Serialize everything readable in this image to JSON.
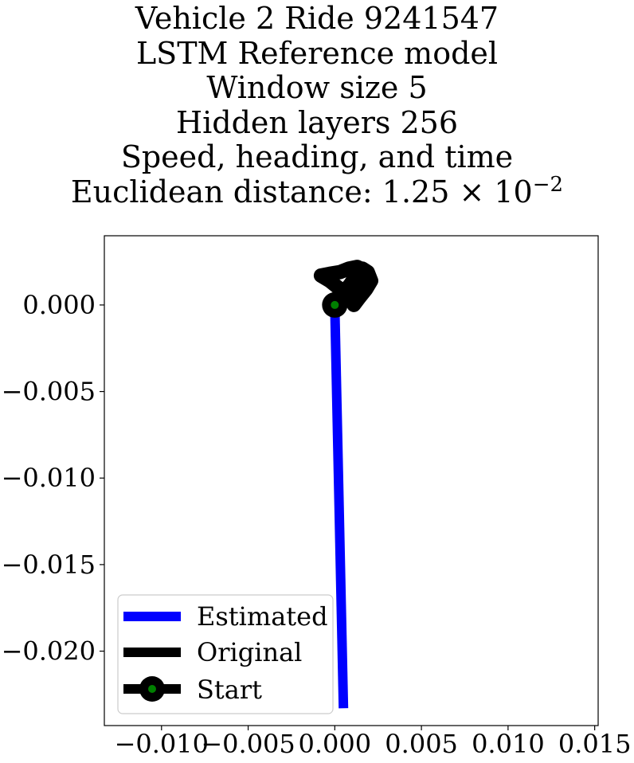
{
  "title_lines": [
    "Vehicle 2 Ride 9241547",
    "LSTM Reference model",
    "Window size 5",
    "Hidden layers 256",
    "Speed, heading, and time"
  ],
  "title_distance": {
    "prefix": "Euclidean distance: 1.25 × 10",
    "exponent": "−2"
  },
  "chart_data": {
    "type": "line",
    "xlabel": "",
    "ylabel": "",
    "xlim": [
      -0.0133,
      0.0152
    ],
    "ylim": [
      -0.0243,
      0.004
    ],
    "x_ticks": [
      {
        "value": -0.01,
        "label": "−0.010"
      },
      {
        "value": -0.005,
        "label": "−0.005"
      },
      {
        "value": 0.0,
        "label": "0.000"
      },
      {
        "value": 0.005,
        "label": "0.005"
      },
      {
        "value": 0.01,
        "label": "0.010"
      },
      {
        "value": 0.015,
        "label": "0.015"
      }
    ],
    "y_ticks": [
      {
        "value": 0.0,
        "label": "0.000"
      },
      {
        "value": -0.005,
        "label": "−0.005"
      },
      {
        "value": -0.01,
        "label": "−0.010"
      },
      {
        "value": -0.015,
        "label": "−0.015"
      },
      {
        "value": -0.02,
        "label": "−0.020"
      }
    ],
    "grid": false,
    "legend_position": "lower-left",
    "series": [
      {
        "name": "Estimated",
        "color": "#0000ff",
        "x": [
          0.0,
          0.0005
        ],
        "y": [
          0.0,
          -0.0233
        ]
      },
      {
        "name": "Original",
        "color": "#000000",
        "x": [
          0.0,
          0.0004,
          0.0009,
          0.0013,
          0.0016,
          0.0019,
          0.0021,
          0.0018,
          0.0013,
          0.0009,
          0.0005,
          0.0002,
          -0.0003,
          -0.0008,
          -0.0003,
          0.0003,
          0.0008,
          0.0013,
          0.0017,
          0.002,
          0.0018,
          0.0014,
          0.0011,
          0.0013,
          0.0016,
          0.0019,
          0.0015,
          0.0011,
          0.0006,
          0.0002,
          0.0
        ],
        "y": [
          0.0,
          0.0006,
          0.0012,
          0.0018,
          0.0021,
          0.0019,
          0.0014,
          0.0009,
          0.0005,
          0.0002,
          0.0005,
          0.001,
          0.0014,
          0.0017,
          0.0018,
          0.0019,
          0.0021,
          0.0022,
          0.002,
          0.0015,
          0.0009,
          0.0004,
          0.0,
          0.0004,
          0.0008,
          0.0011,
          0.0013,
          0.0012,
          0.0008,
          0.0003,
          0.0
        ]
      }
    ],
    "start_point": {
      "name": "Start",
      "x": 0.0,
      "y": 0.0,
      "marker_color": "#008000",
      "ring_color": "#000000"
    }
  }
}
